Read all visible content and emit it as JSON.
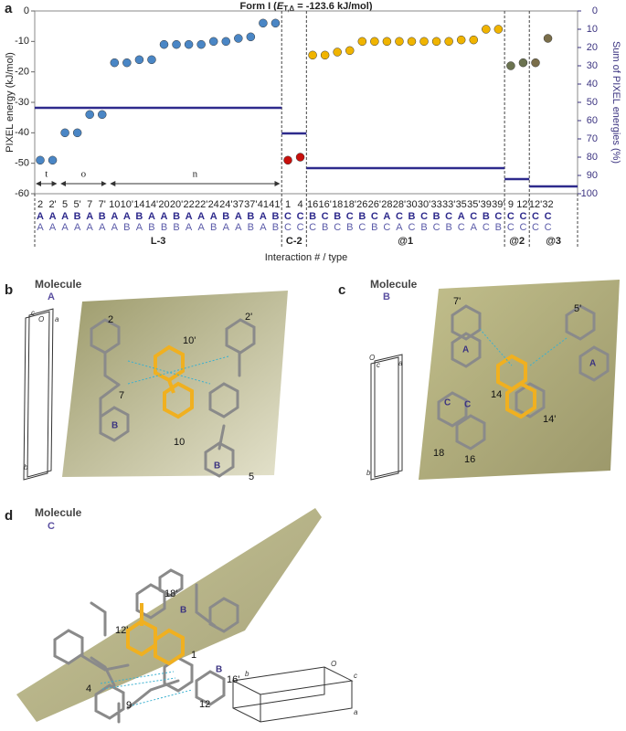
{
  "chart_data": {
    "type": "dot",
    "title_parts": [
      "Form I (",
      "E",
      "T,Δ",
      " = -123.6 kJ/mol)"
    ],
    "panel_label": "a",
    "ylabel": "PIXEL energy (kJ/mol)",
    "y2label": "Sum of PIXEL energies (%)",
    "xlabel": "Interaction # / type",
    "categories": [
      "2",
      "2'",
      "5",
      "5'",
      "7",
      "7'",
      "10",
      "10'",
      "14",
      "14'",
      "20",
      "20'",
      "22",
      "22'",
      "24",
      "24'",
      "37",
      "37'",
      "41",
      "41'",
      "1",
      "4",
      "16",
      "16'",
      "18",
      "18'",
      "26",
      "26'",
      "28",
      "28'",
      "30",
      "30'",
      "33",
      "33'",
      "35",
      "35'",
      "39",
      "39'",
      "9",
      "12'",
      "12'",
      "32"
    ],
    "type_rows": [
      [
        "A",
        "A",
        "A",
        "B",
        "A",
        "B",
        "A",
        "A",
        "B",
        "A",
        "A",
        "B",
        "A",
        "A",
        "A",
        "B",
        "A",
        "B",
        "A",
        "B",
        "C",
        "C",
        "B",
        "C",
        "B",
        "C",
        "B",
        "C",
        "A",
        "C",
        "B",
        "C",
        "B",
        "C",
        "A",
        "C",
        "B",
        "C",
        "C",
        "C",
        "C",
        "C"
      ],
      [
        "A",
        "A",
        "A",
        "A",
        "A",
        "A",
        "A",
        "B",
        "A",
        "B",
        "B",
        "B",
        "A",
        "A",
        "B",
        "A",
        "A",
        "B",
        "A",
        "B",
        "C",
        "C",
        "C",
        "B",
        "C",
        "B",
        "C",
        "B",
        "C",
        "A",
        "C",
        "B",
        "C",
        "B",
        "C",
        "A",
        "C",
        "B",
        "C",
        "C",
        "C",
        "C"
      ]
    ],
    "series": [
      {
        "name": "L-3",
        "color": "#4a86c5",
        "sum_percent": 53,
        "values": [
          -49,
          -49,
          -40,
          -40,
          -34,
          -34,
          -17,
          -17,
          -16,
          -16,
          -11,
          -11,
          -11,
          -11,
          -10,
          -10,
          -9,
          -8.5,
          -4,
          -4,
          null,
          null,
          null,
          null,
          null,
          null,
          null,
          null,
          null,
          null,
          null,
          null,
          null,
          null,
          null,
          null,
          null,
          null,
          null,
          null,
          null,
          null
        ]
      },
      {
        "name": "C-2",
        "color": "#c8100c",
        "sum_percent": 67,
        "values": [
          null,
          null,
          null,
          null,
          null,
          null,
          null,
          null,
          null,
          null,
          null,
          null,
          null,
          null,
          null,
          null,
          null,
          null,
          null,
          null,
          -49,
          -48,
          null,
          null,
          null,
          null,
          null,
          null,
          null,
          null,
          null,
          null,
          null,
          null,
          null,
          null,
          null,
          null,
          null,
          null,
          null,
          null
        ]
      },
      {
        "name": "@1",
        "color": "#f0b400",
        "sum_percent": 86,
        "values": [
          null,
          null,
          null,
          null,
          null,
          null,
          null,
          null,
          null,
          null,
          null,
          null,
          null,
          null,
          null,
          null,
          null,
          null,
          null,
          null,
          null,
          null,
          -14.5,
          -14.5,
          -13.5,
          -13,
          -10,
          -10,
          -10,
          -10,
          -10,
          -10,
          -10,
          -10,
          -9.5,
          -9.5,
          -6,
          -6,
          null,
          null,
          null,
          null
        ]
      },
      {
        "name": "@2",
        "color": "#6b7350",
        "sum_percent": 92,
        "values": [
          null,
          null,
          null,
          null,
          null,
          null,
          null,
          null,
          null,
          null,
          null,
          null,
          null,
          null,
          null,
          null,
          null,
          null,
          null,
          null,
          null,
          null,
          null,
          null,
          null,
          null,
          null,
          null,
          null,
          null,
          null,
          null,
          null,
          null,
          null,
          null,
          null,
          null,
          -18,
          -17,
          null,
          null
        ]
      },
      {
        "name": "@3",
        "color": "#7a6e4a",
        "sum_percent": 96,
        "values": [
          null,
          null,
          null,
          null,
          null,
          null,
          null,
          null,
          null,
          null,
          null,
          null,
          null,
          null,
          null,
          null,
          null,
          null,
          null,
          null,
          null,
          null,
          null,
          null,
          null,
          null,
          null,
          null,
          null,
          null,
          null,
          null,
          null,
          null,
          null,
          null,
          null,
          null,
          null,
          null,
          -17,
          -9
        ]
      }
    ],
    "range_labels": [
      {
        "text": "t",
        "from": 0,
        "to": 1
      },
      {
        "text": "o",
        "from": 2,
        "to": 5
      },
      {
        "text": "n",
        "from": 6,
        "to": 19
      }
    ],
    "ylim": [
      -60,
      0
    ],
    "yticks": [
      -60,
      -50,
      -40,
      -30,
      -20,
      -10,
      0
    ],
    "y2lim": [
      100,
      0
    ],
    "y2ticks": [
      0,
      10,
      20,
      30,
      40,
      50,
      60,
      70,
      80,
      90,
      100
    ],
    "sum_color": "#2e2a8c"
  },
  "panels": [
    {
      "label": "b",
      "heading": "Molecule",
      "molecule": "A",
      "atom_labels": [
        "2",
        "10'",
        "2'",
        "7",
        "10",
        "5"
      ],
      "ring_labels": [
        "B",
        "B"
      ],
      "cell_labels": [
        "c",
        "O",
        "a",
        "b"
      ]
    },
    {
      "label": "c",
      "heading": "Molecule",
      "molecule": "B",
      "atom_labels": [
        "7'",
        "5'",
        "14",
        "14'",
        "18",
        "16"
      ],
      "ring_labels": [
        "A",
        "A",
        "C",
        "C"
      ],
      "cell_labels": [
        "O",
        "c",
        "a",
        "b"
      ]
    },
    {
      "label": "d",
      "heading": "Molecule",
      "molecule": "C",
      "atom_labels": [
        "18'",
        "12'",
        "1",
        "16'",
        "4",
        "12",
        "9"
      ],
      "ring_labels": [
        "B",
        "B"
      ],
      "cell_labels": [
        "b",
        "O",
        "c",
        "a"
      ]
    }
  ]
}
